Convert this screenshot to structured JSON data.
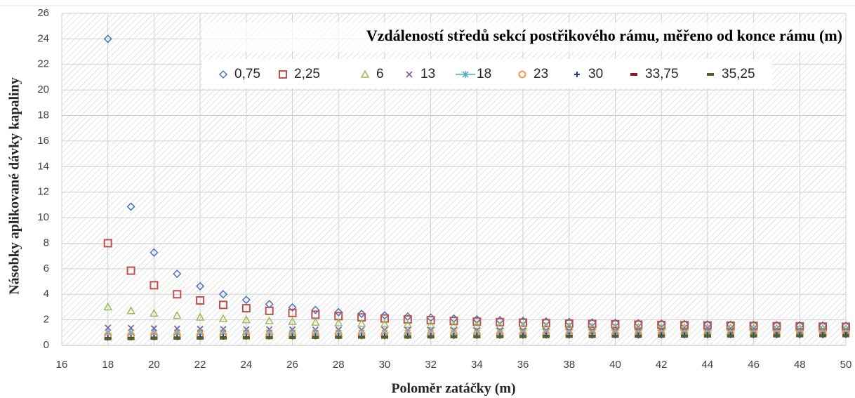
{
  "chart_data": {
    "type": "scatter",
    "legend_title": "Vzdáleností středů sekcí postřikového rámu, měřeno od konce rámu (m)",
    "x_label": "Poloměr zatáčky (m)",
    "y_label": "Násobky aplikované dávky kapaliny",
    "x": [
      18,
      19,
      20,
      21,
      22,
      23,
      24,
      25,
      26,
      27,
      28,
      29,
      30,
      31,
      32,
      33,
      34,
      35,
      36,
      37,
      38,
      39,
      40,
      41,
      42,
      43,
      44,
      45,
      46,
      47,
      48,
      49,
      50
    ],
    "series": [
      {
        "name": "0,75",
        "color": "#4472c4",
        "marker": "diamond",
        "values": [
          24.0,
          10.86,
          7.27,
          5.6,
          4.63,
          4.0,
          3.56,
          3.23,
          2.97,
          2.77,
          2.6,
          2.47,
          2.35,
          2.25,
          2.17,
          2.1,
          2.03,
          1.97,
          1.92,
          1.87,
          1.83,
          1.79,
          1.76,
          1.73,
          1.7,
          1.67,
          1.64,
          1.62,
          1.6,
          1.58,
          1.56,
          1.54,
          1.53
        ]
      },
      {
        "name": "2,25",
        "color": "#c0504d",
        "marker": "square",
        "values": [
          8.0,
          5.85,
          4.71,
          4.0,
          3.52,
          3.17,
          2.91,
          2.7,
          2.54,
          2.4,
          2.29,
          2.19,
          2.11,
          2.03,
          1.97,
          1.91,
          1.86,
          1.82,
          1.78,
          1.74,
          1.71,
          1.68,
          1.65,
          1.62,
          1.6,
          1.58,
          1.56,
          1.54,
          1.52,
          1.5,
          1.49,
          1.47,
          1.46
        ]
      },
      {
        "name": "6",
        "color": "#9bbb59",
        "marker": "triangle",
        "values": [
          3.0,
          2.71,
          2.5,
          2.33,
          2.2,
          2.09,
          2.0,
          1.92,
          1.86,
          1.8,
          1.75,
          1.71,
          1.67,
          1.63,
          1.6,
          1.57,
          1.55,
          1.52,
          1.5,
          1.48,
          1.46,
          1.44,
          1.43,
          1.41,
          1.4,
          1.39,
          1.38,
          1.36,
          1.35,
          1.34,
          1.33,
          1.32,
          1.32
        ]
      },
      {
        "name": "13",
        "color": "#8064a2",
        "marker": "x",
        "values": [
          1.38,
          1.36,
          1.33,
          1.31,
          1.29,
          1.28,
          1.26,
          1.25,
          1.24,
          1.23,
          1.22,
          1.21,
          1.2,
          1.19,
          1.19,
          1.18,
          1.17,
          1.17,
          1.16,
          1.16,
          1.15,
          1.15,
          1.14,
          1.14,
          1.14,
          1.13,
          1.13,
          1.13,
          1.12,
          1.12,
          1.12,
          1.11,
          1.11
        ]
      },
      {
        "name": "18",
        "color": "#4bacc6",
        "marker": "asterisk",
        "values": [
          1,
          1,
          1,
          1,
          1,
          1,
          1,
          1,
          1,
          1,
          1,
          1,
          1,
          1,
          1,
          1,
          1,
          1,
          1,
          1,
          1,
          1,
          1,
          1,
          1,
          1,
          1,
          1,
          1,
          1,
          1,
          1,
          1
        ]
      },
      {
        "name": "23",
        "color": "#f79646",
        "marker": "circle",
        "values": [
          0.78,
          0.79,
          0.8,
          0.81,
          0.81,
          0.82,
          0.83,
          0.83,
          0.84,
          0.84,
          0.85,
          0.85,
          0.86,
          0.86,
          0.86,
          0.87,
          0.87,
          0.88,
          0.88,
          0.88,
          0.88,
          0.89,
          0.89,
          0.89,
          0.89,
          0.9,
          0.9,
          0.9,
          0.9,
          0.9,
          0.91,
          0.91,
          0.91
        ]
      },
      {
        "name": "30",
        "color": "#1f3c88",
        "marker": "plus",
        "values": [
          0.6,
          0.61,
          0.63,
          0.64,
          0.65,
          0.66,
          0.67,
          0.68,
          0.68,
          0.69,
          0.7,
          0.71,
          0.71,
          0.72,
          0.73,
          0.73,
          0.74,
          0.74,
          0.75,
          0.76,
          0.76,
          0.76,
          0.77,
          0.77,
          0.78,
          0.78,
          0.79,
          0.79,
          0.79,
          0.8,
          0.8,
          0.8,
          0.81
        ]
      },
      {
        "name": "33,75",
        "color": "#7f1f1f",
        "marker": "dash",
        "values": [
          0.53,
          0.55,
          0.56,
          0.57,
          0.58,
          0.59,
          0.6,
          0.61,
          0.62,
          0.63,
          0.64,
          0.65,
          0.66,
          0.66,
          0.67,
          0.68,
          0.68,
          0.69,
          0.7,
          0.7,
          0.71,
          0.71,
          0.72,
          0.72,
          0.73,
          0.73,
          0.74,
          0.74,
          0.74,
          0.75,
          0.75,
          0.76,
          0.76
        ]
      },
      {
        "name": "35,25",
        "color": "#4f6228",
        "marker": "dash",
        "values": [
          0.51,
          0.52,
          0.54,
          0.55,
          0.56,
          0.57,
          0.58,
          0.59,
          0.6,
          0.61,
          0.62,
          0.63,
          0.63,
          0.64,
          0.65,
          0.66,
          0.66,
          0.67,
          0.68,
          0.68,
          0.69,
          0.69,
          0.7,
          0.7,
          0.71,
          0.71,
          0.72,
          0.72,
          0.73,
          0.73,
          0.74,
          0.74,
          0.74
        ]
      }
    ],
    "xlim": [
      16,
      50
    ],
    "xticks": [
      16,
      18,
      20,
      22,
      24,
      26,
      28,
      30,
      32,
      34,
      36,
      38,
      40,
      42,
      44,
      46,
      48,
      50
    ],
    "ylim": [
      0,
      26
    ],
    "yticks": [
      0,
      2,
      4,
      6,
      8,
      10,
      12,
      14,
      16,
      18,
      20,
      22,
      24,
      26
    ],
    "grid": true
  }
}
